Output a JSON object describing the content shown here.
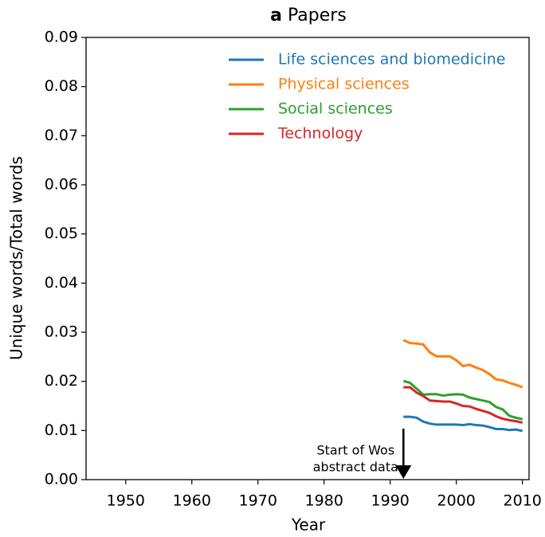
{
  "chart_data": {
    "type": "line",
    "title_label": "a",
    "title": "Papers",
    "x_label": "Year",
    "y_label": "Unique words/Total words",
    "x": [
      1992,
      1993,
      1994,
      1995,
      1996,
      1997,
      1998,
      1999,
      2000,
      2001,
      2002,
      2003,
      2004,
      2005,
      2006,
      2007,
      2008,
      2009,
      2010
    ],
    "series": [
      {
        "name": "Life sciences and biomedicine",
        "color": "#1f77b4",
        "values": [
          0.0128,
          0.0128,
          0.0126,
          0.0118,
          0.0114,
          0.0112,
          0.0112,
          0.0112,
          0.0112,
          0.0111,
          0.0113,
          0.0111,
          0.011,
          0.0107,
          0.0103,
          0.0103,
          0.0101,
          0.0102,
          0.0099
        ]
      },
      {
        "name": "Physical sciences",
        "color": "#ff7f0e",
        "values": [
          0.0284,
          0.0278,
          0.0277,
          0.0275,
          0.0259,
          0.0251,
          0.0251,
          0.0251,
          0.0243,
          0.0231,
          0.0234,
          0.0228,
          0.0223,
          0.0215,
          0.0204,
          0.0202,
          0.0197,
          0.0193,
          0.0188
        ]
      },
      {
        "name": "Social sciences",
        "color": "#2ca02c",
        "values": [
          0.0201,
          0.0197,
          0.0185,
          0.0173,
          0.0174,
          0.0174,
          0.0171,
          0.0173,
          0.0174,
          0.0173,
          0.0167,
          0.0164,
          0.0161,
          0.0158,
          0.0148,
          0.0143,
          0.013,
          0.0126,
          0.0123
        ]
      },
      {
        "name": "Technology",
        "color": "#d62728",
        "values": [
          0.0188,
          0.0188,
          0.0177,
          0.017,
          0.0161,
          0.016,
          0.0159,
          0.0159,
          0.0155,
          0.015,
          0.0149,
          0.0144,
          0.014,
          0.0136,
          0.0129,
          0.0124,
          0.0121,
          0.0119,
          0.0116
        ]
      }
    ],
    "xlim": [
      1944,
      2011
    ],
    "xticks": [
      1950,
      1960,
      1970,
      1980,
      1990,
      2000,
      2010
    ],
    "ylim": [
      0,
      0.09
    ],
    "yticks": [
      {
        "value": 0,
        "label": "0.00"
      },
      {
        "value": 0.01,
        "label": "0.01"
      },
      {
        "value": 0.02,
        "label": "0.02"
      },
      {
        "value": 0.03,
        "label": "0.03"
      },
      {
        "value": 0.04,
        "label": "0.04"
      },
      {
        "value": 0.05,
        "label": "0.05"
      },
      {
        "value": 0.06,
        "label": "0.06"
      },
      {
        "value": 0.07,
        "label": "0.07"
      },
      {
        "value": 0.08,
        "label": "0.08"
      },
      {
        "value": 0.09,
        "label": "0.09"
      }
    ],
    "grid": false,
    "legend": "upper right",
    "annotation": {
      "text": [
        "Start of Wos",
        "abstract data"
      ],
      "x": 1992
    }
  }
}
